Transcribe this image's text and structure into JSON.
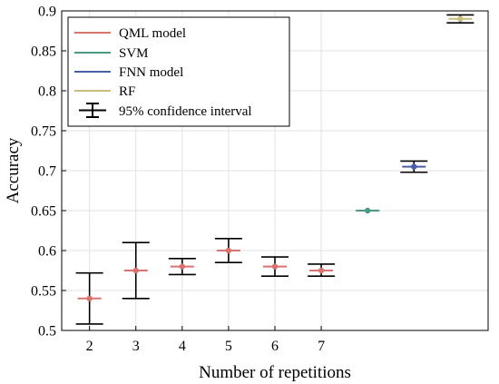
{
  "chart_data": {
    "type": "scatter",
    "title": "",
    "xlabel": "Number of repetitions",
    "ylabel": "Accuracy",
    "ylim": [
      0.5,
      0.9
    ],
    "xlim": [
      1.4,
      10.6
    ],
    "x_ticks": [
      2,
      3,
      4,
      5,
      6,
      7
    ],
    "x_tick_labels": [
      "2",
      "3",
      "4",
      "5",
      "6",
      "7"
    ],
    "y_ticks": [
      0.5,
      0.55,
      0.6,
      0.65,
      0.7,
      0.75,
      0.8,
      0.85,
      0.9
    ],
    "y_tick_labels": [
      "0.5",
      "0.55",
      "0.6",
      "0.65",
      "0.7",
      "0.75",
      "0.8",
      "0.85",
      "0.9"
    ],
    "grid": true,
    "legend_position": "top-left",
    "series": [
      {
        "name": "QML model",
        "color": "#d9736f",
        "points": [
          {
            "x": 2,
            "y": 0.54,
            "lower": 0.508,
            "upper": 0.572
          },
          {
            "x": 3,
            "y": 0.575,
            "lower": 0.54,
            "upper": 0.61
          },
          {
            "x": 4,
            "y": 0.58,
            "lower": 0.57,
            "upper": 0.59
          },
          {
            "x": 5,
            "y": 0.6,
            "lower": 0.585,
            "upper": 0.615
          },
          {
            "x": 6,
            "y": 0.58,
            "lower": 0.568,
            "upper": 0.592
          },
          {
            "x": 7,
            "y": 0.575,
            "lower": 0.568,
            "upper": 0.583
          }
        ]
      },
      {
        "name": "SVM",
        "color": "#4b9a85",
        "points": [
          {
            "x": 8,
            "y": 0.65,
            "lower": 0.65,
            "upper": 0.65
          }
        ]
      },
      {
        "name": "FNN model",
        "color": "#4a5da8",
        "points": [
          {
            "x": 9,
            "y": 0.705,
            "lower": 0.698,
            "upper": 0.712
          }
        ]
      },
      {
        "name": "RF",
        "color": "#c9bd7e",
        "points": [
          {
            "x": 10,
            "y": 0.89,
            "lower": 0.885,
            "upper": 0.895
          }
        ]
      }
    ],
    "error_bar_legend": "95% confidence interval",
    "error_bar_color": "#000000"
  }
}
